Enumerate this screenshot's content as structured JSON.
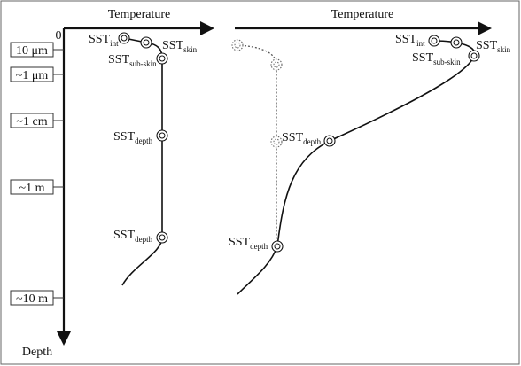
{
  "left_panel": {
    "x_axis_label": "Temperature",
    "origin_label": "0",
    "y_axis_label": "Depth",
    "depth_levels": [
      "10 μm",
      "~1 μm",
      "~1 cm",
      "~1 m",
      "~10 m"
    ],
    "labels": [
      {
        "base": "SST",
        "sub": "int"
      },
      {
        "base": "SST",
        "sub": "skin"
      },
      {
        "base": "SST",
        "sub": "sub-skin"
      },
      {
        "base": "SST",
        "sub": "depth"
      },
      {
        "base": "SST",
        "sub": "depth"
      }
    ]
  },
  "right_panel": {
    "x_axis_label": "Temperature",
    "labels": [
      {
        "base": "SST",
        "sub": "int"
      },
      {
        "base": "SST",
        "sub": "skin"
      },
      {
        "base": "SST",
        "sub": "sub-skin"
      },
      {
        "base": "SST",
        "sub": "depth"
      },
      {
        "base": "SST",
        "sub": "depth"
      }
    ]
  }
}
